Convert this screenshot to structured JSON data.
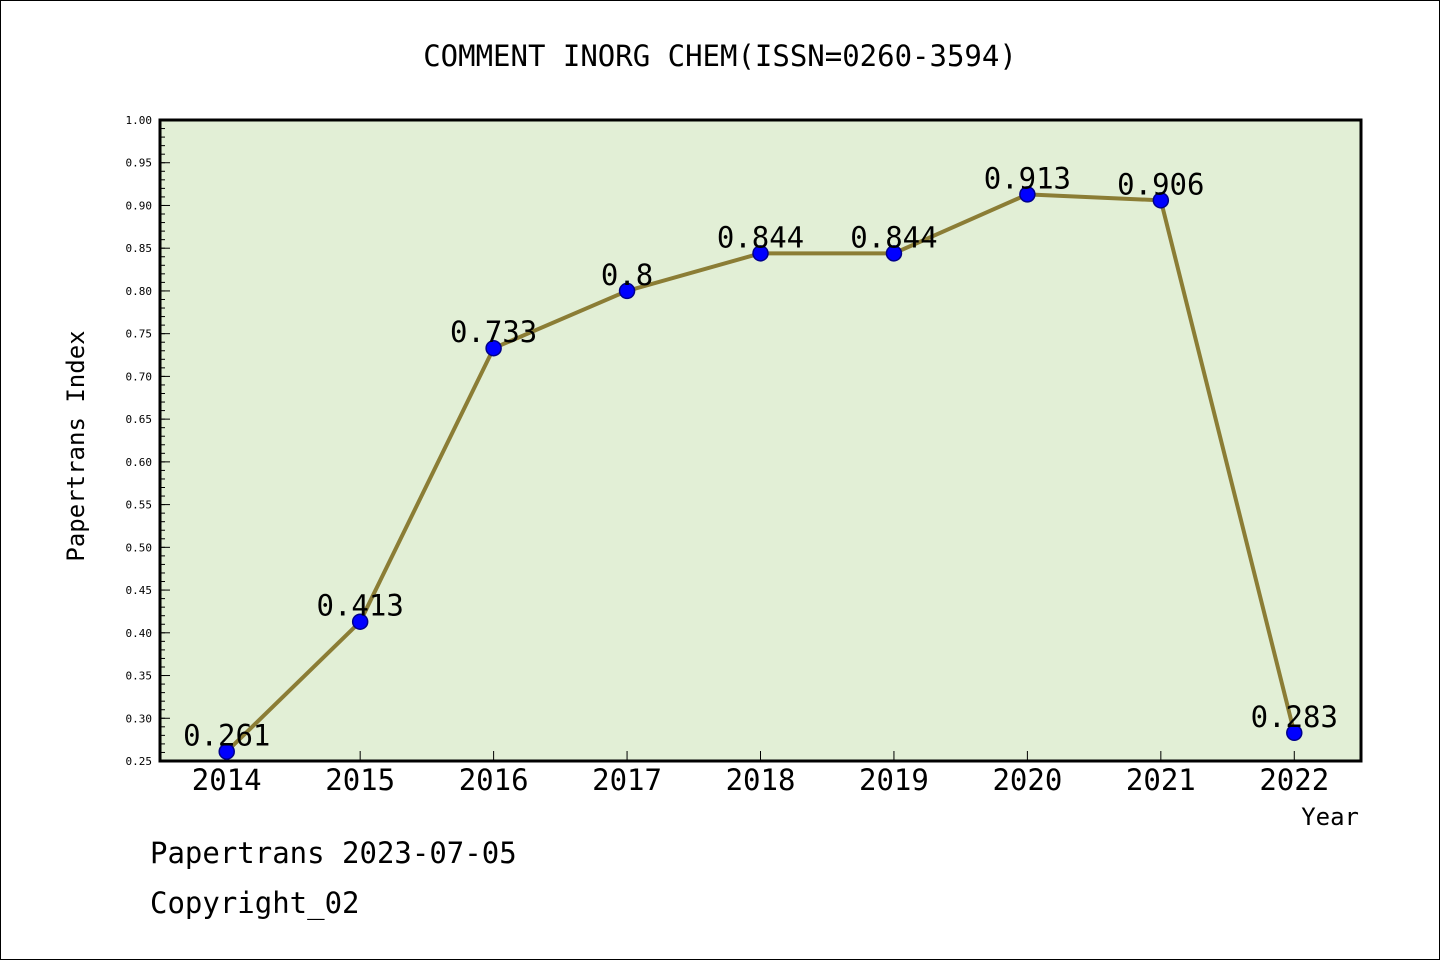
{
  "footer": {
    "date_line": "Papertrans 2023-07-05",
    "copyright": "Copyright_02"
  },
  "colors": {
    "plot_background": "#e2efd6",
    "line": "#8b7d35",
    "marker": "#0000ff",
    "marker_edge": "#00008b"
  },
  "chart_data": {
    "type": "line",
    "title": "COMMENT INORG CHEM(ISSN=0260-3594)",
    "xlabel": "Year",
    "ylabel": "Papertrans Index",
    "categories": [
      "2014",
      "2015",
      "2016",
      "2017",
      "2018",
      "2019",
      "2020",
      "2021",
      "2022"
    ],
    "values": [
      0.261,
      0.413,
      0.733,
      0.8,
      0.844,
      0.844,
      0.913,
      0.906,
      0.283
    ],
    "data_labels": [
      "0.261",
      "0.413",
      "0.733",
      "0.8",
      "0.844",
      "0.844",
      "0.913",
      "0.906",
      "0.283"
    ],
    "ylim": [
      0.25,
      1.0
    ],
    "yticks": [
      "0.25",
      "0.30",
      "0.35",
      "0.40",
      "0.45",
      "0.50",
      "0.55",
      "0.60",
      "0.65",
      "0.70",
      "0.75",
      "0.80",
      "0.85",
      "0.90",
      "0.95",
      "1.00"
    ],
    "grid": false,
    "legend": "none"
  }
}
